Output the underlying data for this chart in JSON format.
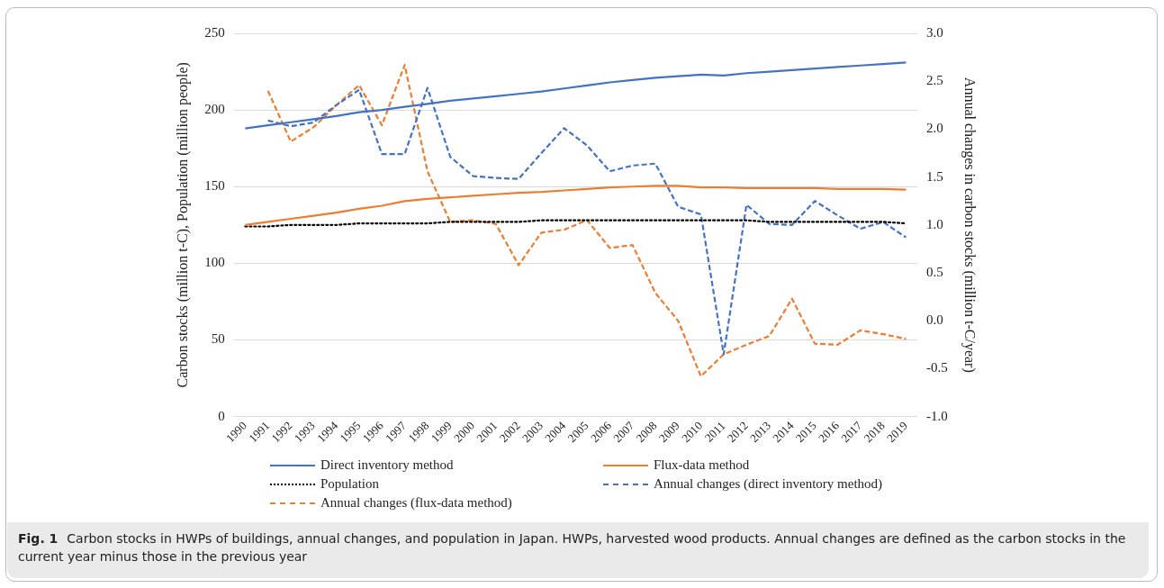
{
  "chart_data": {
    "type": "line",
    "categories": [
      "1990",
      "1991",
      "1992",
      "1993",
      "1994",
      "1995",
      "1996",
      "1997",
      "1998",
      "1999",
      "2000",
      "2001",
      "2002",
      "2003",
      "2004",
      "2005",
      "2006",
      "2007",
      "2008",
      "2009",
      "2010",
      "2011",
      "2012",
      "2013",
      "2014",
      "2015",
      "2016",
      "2017",
      "2018",
      "2019"
    ],
    "series": [
      {
        "name": "Direct inventory method",
        "color": "#4472c4",
        "line_style": "solid",
        "values": [
          188,
          190,
          192,
          194,
          196,
          198.5,
          200,
          202,
          204,
          206,
          207.5,
          209,
          210.5,
          212,
          214,
          216,
          218,
          219.5,
          221,
          222,
          223,
          222.5,
          224,
          225,
          226,
          227,
          228,
          229,
          230,
          231
        ]
      },
      {
        "name": "Flux-data method",
        "color": "#ed7d31",
        "line_style": "solid",
        "values": [
          125,
          127,
          129,
          131,
          133,
          135.5,
          137.5,
          140.5,
          142,
          143,
          144,
          145,
          146,
          146.5,
          147.5,
          148.5,
          149.5,
          150,
          150.5,
          150.5,
          149.5,
          149.5,
          149,
          149,
          149,
          149,
          148.5,
          148.5,
          148.5,
          148
        ]
      },
      {
        "name": "Population",
        "color": "#000000",
        "line_style": "dotted",
        "values": [
          124,
          124,
          125,
          125,
          125,
          126,
          126,
          126,
          126,
          127,
          127,
          127,
          127,
          128,
          128,
          128,
          128,
          128,
          128,
          128,
          128,
          128,
          128,
          127,
          127,
          127,
          127,
          127,
          127,
          126
        ]
      },
      {
        "name": "Annual changes (direct inventory method)",
        "color": "#4472c4",
        "line_style": "dashed",
        "axis": "y2",
        "values": [
          null,
          2.09,
          2.03,
          2.07,
          2.25,
          2.41,
          1.74,
          1.74,
          2.43,
          1.71,
          1.51,
          1.49,
          1.48,
          1.75,
          2.01,
          1.83,
          1.56,
          1.62,
          1.64,
          1.19,
          1.11,
          -0.35,
          1.21,
          1.01,
          1.0,
          1.25,
          1.1,
          0.96,
          1.03,
          0.87
        ]
      },
      {
        "name": "Annual changes (flux-data method)",
        "color": "#ed7d31",
        "line_style": "dashed",
        "axis": "y2",
        "values": [
          null,
          2.4,
          1.87,
          2.02,
          2.25,
          2.46,
          2.04,
          2.67,
          1.56,
          1.03,
          1.05,
          1.01,
          0.58,
          0.92,
          0.95,
          1.05,
          0.76,
          0.79,
          0.29,
          0.0,
          -0.58,
          -0.35,
          -0.25,
          -0.16,
          0.23,
          -0.24,
          -0.25,
          -0.1,
          -0.14,
          -0.19
        ]
      }
    ],
    "ylabel": "Carbon stocks (million t-C), Population (million people)",
    "y2label": "Annual changes in carbon stocks (million t-C/year)",
    "ylim": [
      0,
      250
    ],
    "yticks": [
      0,
      50,
      100,
      150,
      200,
      250
    ],
    "y2lim": [
      -1.0,
      3.0
    ],
    "y2ticks": [
      {
        "value": -1,
        "label": "-1.0"
      },
      {
        "value": -0.5,
        "label": "-0.5"
      },
      {
        "value": 0,
        "label": "0.0"
      },
      {
        "value": 0.5,
        "label": "0.5"
      },
      {
        "value": 1,
        "label": "1.0"
      },
      {
        "value": 1.5,
        "label": "1.5"
      },
      {
        "value": 2,
        "label": "2.0"
      },
      {
        "value": 2.5,
        "label": "2.5"
      },
      {
        "value": 3,
        "label": "3.0"
      }
    ],
    "grid": "y",
    "legend": "bottom",
    "marker": "none",
    "annotations": [
      "Fig. 1",
      "Carbon stocks in HWPs of buildings, annual changes, and population in Japan. HWPs, harvested wood products. Annual changes are defined as the carbon stocks in the current year minus those in the previous year"
    ]
  }
}
